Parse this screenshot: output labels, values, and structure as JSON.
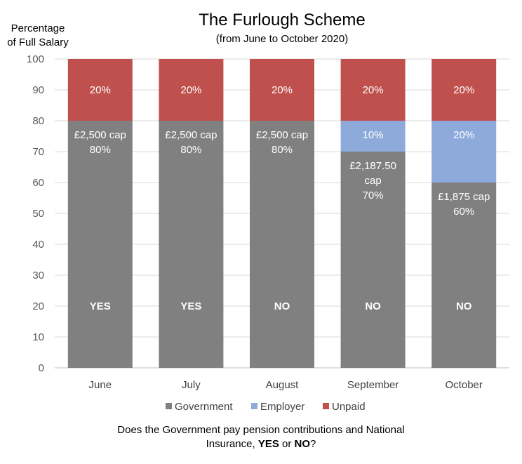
{
  "chart_data": {
    "type": "bar",
    "stacked": true,
    "title": "The Furlough Scheme",
    "subtitle": "(from June to October 2020)",
    "ylabel_line1": "Percentage",
    "ylabel_line2": "of Full Salary",
    "xlabel": "",
    "ylim": [
      0,
      100
    ],
    "yticks": [
      0,
      10,
      20,
      30,
      40,
      50,
      60,
      70,
      80,
      90,
      100
    ],
    "grid": true,
    "legend_position": "bottom",
    "categories": [
      "June",
      "July",
      "August",
      "September",
      "October"
    ],
    "series": [
      {
        "name": "Government",
        "color": "#808080",
        "values": [
          80,
          80,
          80,
          70,
          60
        ]
      },
      {
        "name": "Employer",
        "color": "#8eaadb",
        "values": [
          0,
          0,
          0,
          10,
          20
        ]
      },
      {
        "name": "Unpaid",
        "color": "#c0504d",
        "values": [
          20,
          20,
          20,
          20,
          20
        ]
      }
    ],
    "segment_labels": {
      "Government": [
        [
          "£2,500 cap",
          "80%"
        ],
        [
          "£2,500 cap",
          "80%"
        ],
        [
          "£2,500 cap",
          "80%"
        ],
        [
          "£2,187.50",
          "cap",
          "70%"
        ],
        [
          "£1,875 cap",
          "60%"
        ]
      ],
      "Employer": [
        [],
        [],
        [],
        [
          "10%"
        ],
        [
          "20%"
        ]
      ],
      "Unpaid": [
        [
          "20%"
        ],
        [
          "20%"
        ],
        [
          "20%"
        ],
        [
          "20%"
        ],
        [
          "20%"
        ]
      ]
    },
    "pension_ni": [
      "YES",
      "YES",
      "NO",
      "NO",
      "NO"
    ]
  },
  "footnote": {
    "line1": "Does the Government pay pension contributions and National",
    "line2_prefix": "Insurance, ",
    "yes": "YES",
    "or": " or ",
    "no": "NO",
    "suffix": "?"
  }
}
